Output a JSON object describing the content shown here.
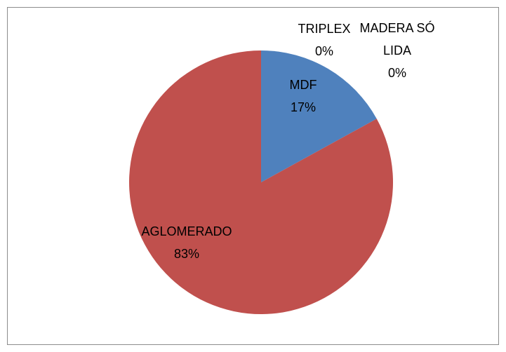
{
  "chart_data": {
    "type": "pie",
    "categories": [
      "MDF",
      "AGLOMERADO",
      "TRIPLEX",
      "MADERA SÓLIDA"
    ],
    "values": [
      17,
      83,
      0,
      0
    ],
    "value_labels": [
      "17%",
      "83%",
      "0%",
      "0%"
    ],
    "colors": [
      "#4f81bd",
      "#c0504d",
      "#9bbb59",
      "#8064a2"
    ]
  }
}
